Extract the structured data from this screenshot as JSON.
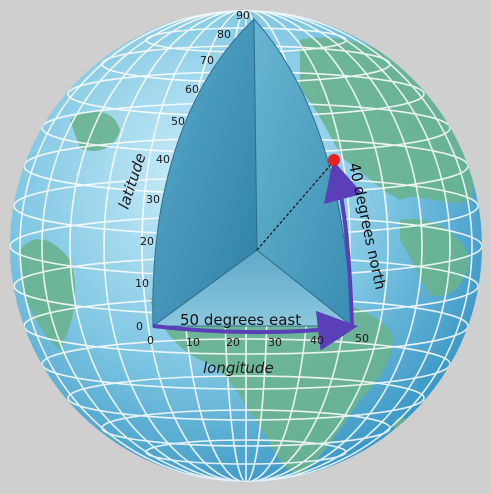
{
  "background_color": "#cfcfcf",
  "globe": {
    "ocean_light": "#a9dcef",
    "ocean_dark": "#3b98c4",
    "land_color": "#63b08c",
    "grid_color": "#ffffff"
  },
  "wedge": {
    "face_color": "#4f9fbe",
    "floor_color": "#6ab4cf"
  },
  "latitude": {
    "label": "latitude",
    "ticks": [
      "0",
      "10",
      "20",
      "30",
      "40",
      "50",
      "60",
      "70",
      "80",
      "90"
    ]
  },
  "longitude": {
    "label": "longitude",
    "ticks": [
      "0",
      "10",
      "20",
      "30",
      "40",
      "50"
    ]
  },
  "arrows": {
    "east_label": "50 degrees east",
    "north_label": "40 degrees north",
    "color": "#5a3fb8"
  },
  "point": {
    "color": "#e8231f"
  }
}
